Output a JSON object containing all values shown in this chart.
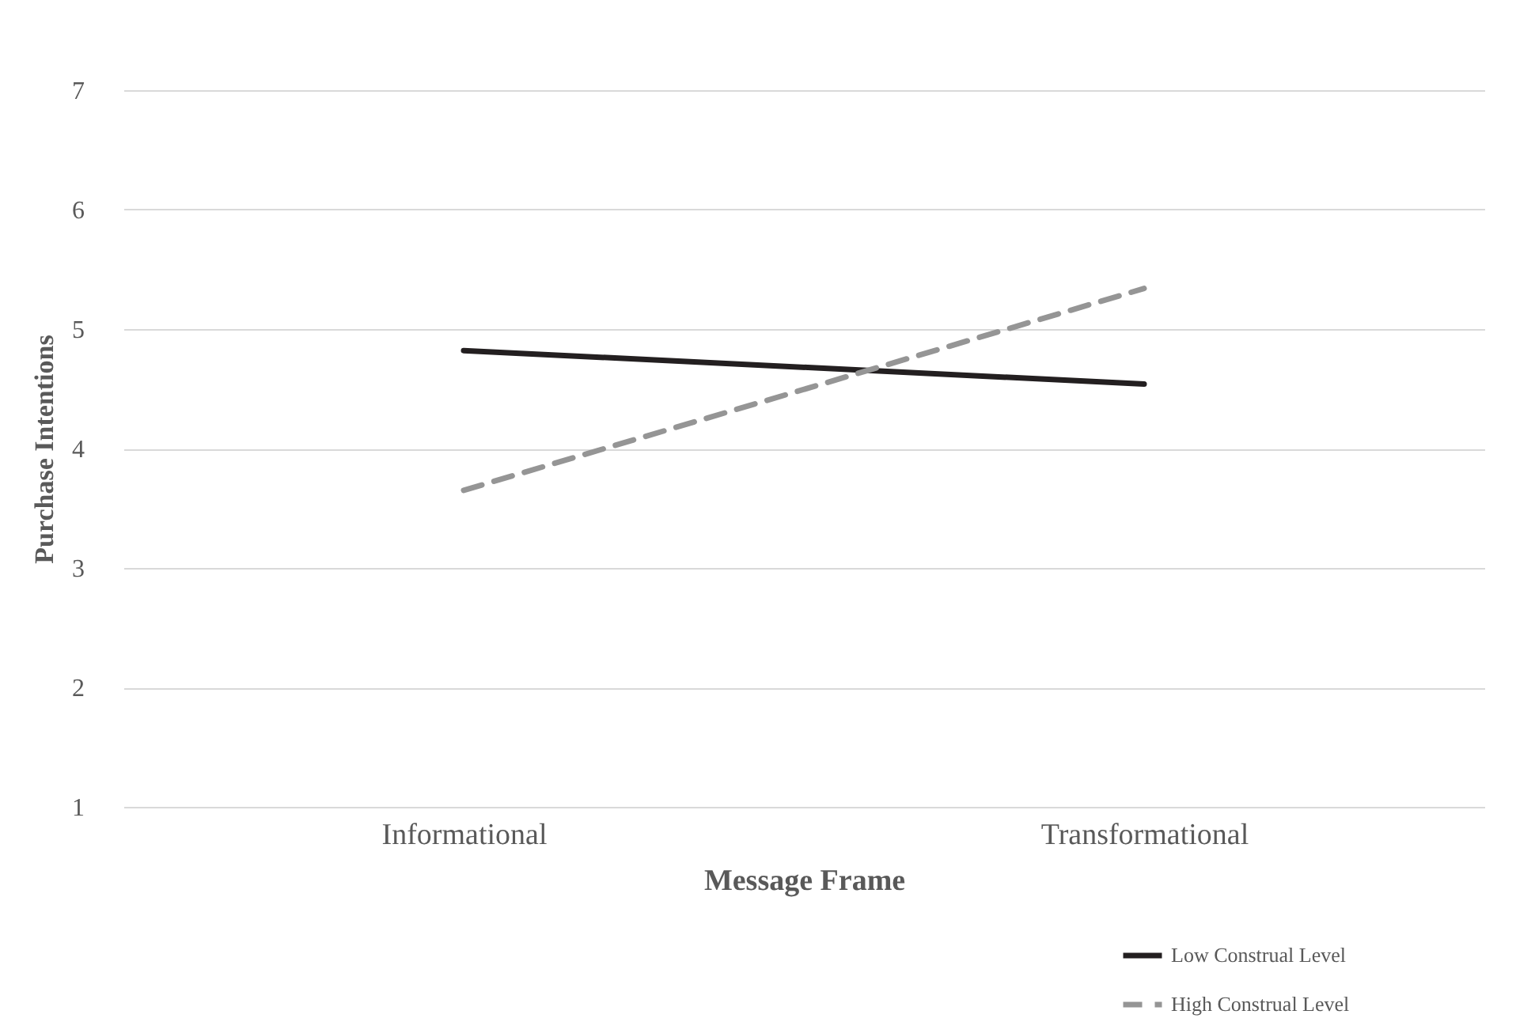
{
  "chart_data": {
    "type": "line",
    "xlabel": "Message Frame",
    "ylabel": "Purchase Intentions",
    "categories": [
      "Informational",
      "Transformational"
    ],
    "series": [
      {
        "name": "Low Construal Level",
        "color": "#231f20",
        "line_style": "solid",
        "values": [
          4.82,
          4.54
        ]
      },
      {
        "name": "High Construal Level",
        "color": "#959595",
        "line_style": "dashed",
        "values": [
          3.65,
          5.34
        ]
      }
    ],
    "ylim": [
      1,
      7
    ],
    "yticks": [
      1,
      2,
      3,
      4,
      5,
      6,
      7
    ],
    "grid": "y",
    "legend": "bottom right"
  }
}
